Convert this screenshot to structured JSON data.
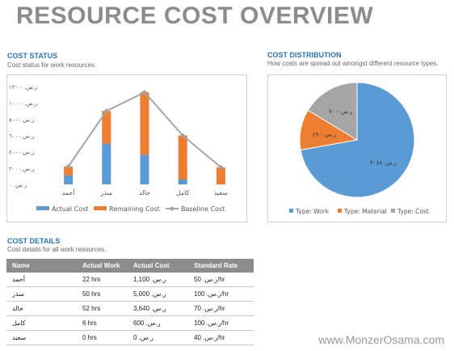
{
  "title": "RESOURCE COST OVERVIEW",
  "cost_status": {
    "heading": "COST STATUS",
    "subtitle": "Cost status for work resources."
  },
  "cost_distribution": {
    "heading": "COST DISTRIBUTION",
    "subtitle": "How costs are spread out amongst different resource types."
  },
  "cost_details": {
    "heading": "COST DETAILS",
    "subtitle": "Cost details for all work resources.",
    "columns": [
      "Name",
      "Actual Work",
      "Actual Cost",
      "Standard Rate"
    ],
    "rows": [
      [
        "أحمد",
        "22 hrs",
        "ر.س.‏ 1,100",
        "ر.س.‏ 50/hr"
      ],
      [
        "منذر",
        "50 hrs",
        "ر.س.‏ 5,000",
        "ر.س.‏ 100/hr"
      ],
      [
        "خالد",
        "52 hrs",
        "ر.س.‏ 3,640",
        "ر.س.‏ 70/hr"
      ],
      [
        "كامل",
        "6 hrs",
        "ر.س.‏ 600",
        "ر.س.‏ 100/hr"
      ],
      [
        "سعيد",
        "0 hrs",
        "ر.س.‏ 0",
        "ر.س.‏ 40/hr"
      ]
    ]
  },
  "watermark": "www.MonzerOsama.com",
  "chart_data": [
    {
      "type": "bar",
      "stacked": true,
      "categories": [
        "أحمد",
        "منذر",
        "خالد",
        "كامل",
        "سعيد"
      ],
      "y_ticks": [
        "ر.س. ٠",
        "ر.س.٢٠٠٠",
        "ر.س.٤٠٠٠",
        "ر.س.٦٠٠٠",
        "ر.س.٨٠٠٠",
        "ر.س.١٠٠٠٠",
        "ر.س.١٢٠٠٠"
      ],
      "ylim": [
        0,
        12000
      ],
      "series": [
        {
          "name": "Actual Cost",
          "kind": "bar",
          "color": "#5b9bd5",
          "values": [
            1100,
            5000,
            3640,
            600,
            0
          ]
        },
        {
          "name": "Remaining Cost",
          "kind": "bar",
          "color": "#ed7d31",
          "values": [
            1100,
            4000,
            7660,
            5400,
            2080
          ]
        },
        {
          "name": "Baseline Cost",
          "kind": "line",
          "color": "#a5a5a5",
          "values": [
            2200,
            9000,
            11300,
            6000,
            2100
          ]
        }
      ],
      "legend_position": "bottom",
      "grid": false
    },
    {
      "type": "pie",
      "slices": [
        {
          "name": "Type: Work",
          "label": "ر.س٣٠٨٨٠",
          "value": 30880,
          "color": "#5b9bd5"
        },
        {
          "name": "Type: Material",
          "label": "ر.س٤٩٠٠",
          "value": 4900,
          "color": "#ed7d31"
        },
        {
          "name": "Type: Cost",
          "label": "ر.س٧٠٠٠",
          "value": 7000,
          "color": "#a5a5a5"
        }
      ],
      "legend_position": "bottom"
    }
  ]
}
